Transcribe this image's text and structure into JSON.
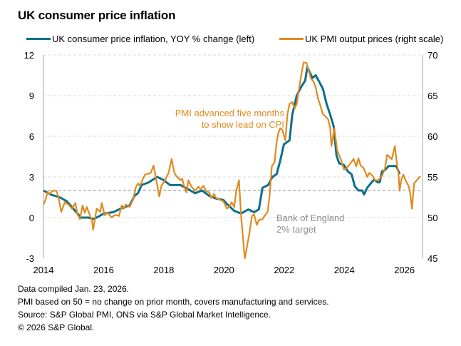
{
  "title": "UK consumer price inflation",
  "notes": [
    "Data compiled Jan. 23, 2026.",
    "PMI based on 50 = no change on prior month, covers manufacturing and services.",
    "Source: S&P Global PMI, ONS via S&P Global Market Intelligence.",
    "© 2026 S&P Global."
  ],
  "chart_data": {
    "type": "line",
    "title": "UK consumer price inflation",
    "xlim": [
      2014,
      2026.6
    ],
    "x_ticks": [
      2014,
      2016,
      2018,
      2020,
      2022,
      2024,
      2026
    ],
    "y_left": {
      "lim": [
        -3,
        12
      ],
      "ticks": [
        -3,
        0,
        3,
        6,
        9,
        12
      ]
    },
    "y_right": {
      "lim": [
        45,
        70
      ],
      "ticks": [
        45,
        50,
        55,
        60,
        65,
        70
      ]
    },
    "grid": "horizontal dashed",
    "legend_position": "top",
    "reference_line": {
      "axis": "left",
      "value": 2,
      "label_lines": [
        "Bank of England",
        "2% target"
      ],
      "color": "#8c8c8c"
    },
    "annotation": {
      "lines": [
        "PMI advanced five months",
        "to show lead on CPI"
      ],
      "color": "#e08a1e"
    },
    "series": [
      {
        "name": "UK consumer price inflation, YOY % change (left)",
        "axis": "left",
        "color": "#0e6f8c",
        "points": [
          [
            2014.0,
            2.0
          ],
          [
            2014.24,
            1.7
          ],
          [
            2014.54,
            1.5
          ],
          [
            2014.78,
            1.2
          ],
          [
            2015.09,
            0.4
          ],
          [
            2015.25,
            0.0
          ],
          [
            2015.49,
            0.0
          ],
          [
            2015.68,
            -0.1
          ],
          [
            2016.01,
            0.3
          ],
          [
            2016.32,
            0.4
          ],
          [
            2016.6,
            0.7
          ],
          [
            2016.86,
            0.9
          ],
          [
            2017.03,
            1.6
          ],
          [
            2017.14,
            1.8
          ],
          [
            2017.26,
            2.4
          ],
          [
            2017.5,
            2.6
          ],
          [
            2017.78,
            3.0
          ],
          [
            2017.97,
            2.8
          ],
          [
            2018.21,
            2.4
          ],
          [
            2018.56,
            2.4
          ],
          [
            2018.8,
            2.1
          ],
          [
            2019.04,
            1.8
          ],
          [
            2019.27,
            2.0
          ],
          [
            2019.51,
            1.6
          ],
          [
            2019.74,
            1.4
          ],
          [
            2019.98,
            1.3
          ],
          [
            2020.1,
            1.0
          ],
          [
            2020.34,
            0.5
          ],
          [
            2020.57,
            0.3
          ],
          [
            2020.81,
            0.6
          ],
          [
            2021.0,
            0.4
          ],
          [
            2021.16,
            0.6
          ],
          [
            2021.28,
            2.2
          ],
          [
            2021.47,
            2.4
          ],
          [
            2021.61,
            3.0
          ],
          [
            2021.75,
            3.2
          ],
          [
            2021.87,
            4.2
          ],
          [
            2021.99,
            5.4
          ],
          [
            2022.18,
            5.7
          ],
          [
            2022.27,
            7.6
          ],
          [
            2022.42,
            9.0
          ],
          [
            2022.58,
            9.7
          ],
          [
            2022.7,
            10.1
          ],
          [
            2022.77,
            11.1
          ],
          [
            2022.94,
            10.3
          ],
          [
            2023.05,
            10.5
          ],
          [
            2023.17,
            10.0
          ],
          [
            2023.29,
            9.5
          ],
          [
            2023.41,
            8.4
          ],
          [
            2023.53,
            7.6
          ],
          [
            2023.65,
            6.7
          ],
          [
            2023.74,
            4.6
          ],
          [
            2023.83,
            4.0
          ],
          [
            2023.98,
            3.9
          ],
          [
            2024.12,
            3.4
          ],
          [
            2024.24,
            3.2
          ],
          [
            2024.35,
            2.3
          ],
          [
            2024.47,
            2.0
          ],
          [
            2024.59,
            2.0
          ],
          [
            2024.66,
            1.7
          ],
          [
            2024.76,
            2.2
          ],
          [
            2024.87,
            2.5
          ],
          [
            2024.99,
            2.8
          ],
          [
            2025.11,
            2.6
          ],
          [
            2025.18,
            2.6
          ],
          [
            2025.25,
            3.4
          ],
          [
            2025.35,
            3.5
          ],
          [
            2025.47,
            3.8
          ],
          [
            2025.61,
            3.8
          ],
          [
            2025.73,
            3.8
          ],
          [
            2025.84,
            3.2
          ]
        ]
      },
      {
        "name": "UK PMI output prices (right scale)",
        "axis": "right",
        "color": "#e08a1e",
        "points": [
          [
            2014.0,
            51.6
          ],
          [
            2014.07,
            52.2
          ],
          [
            2014.14,
            53.2
          ],
          [
            2014.19,
            52.9
          ],
          [
            2014.31,
            53.3
          ],
          [
            2014.43,
            53.3
          ],
          [
            2014.5,
            52.5
          ],
          [
            2014.59,
            50.7
          ],
          [
            2014.71,
            51.9
          ],
          [
            2014.83,
            51.6
          ],
          [
            2014.95,
            51.1
          ],
          [
            2015.06,
            51.8
          ],
          [
            2015.13,
            50.4
          ],
          [
            2015.21,
            49.8
          ],
          [
            2015.3,
            51.5
          ],
          [
            2015.37,
            50.6
          ],
          [
            2015.44,
            51.3
          ],
          [
            2015.54,
            50.3
          ],
          [
            2015.61,
            49.7
          ],
          [
            2015.65,
            48.5
          ],
          [
            2015.77,
            51.1
          ],
          [
            2015.89,
            50.7
          ],
          [
            2015.94,
            51.8
          ],
          [
            2016.03,
            50.3
          ],
          [
            2016.13,
            50.6
          ],
          [
            2016.2,
            50.3
          ],
          [
            2016.27,
            50.0
          ],
          [
            2016.36,
            50.3
          ],
          [
            2016.43,
            50.3
          ],
          [
            2016.51,
            50.2
          ],
          [
            2016.6,
            51.5
          ],
          [
            2016.67,
            51.1
          ],
          [
            2016.74,
            51.6
          ],
          [
            2016.86,
            51.3
          ],
          [
            2016.98,
            52.2
          ],
          [
            2017.07,
            53.7
          ],
          [
            2017.14,
            54.2
          ],
          [
            2017.21,
            53.9
          ],
          [
            2017.31,
            54.8
          ],
          [
            2017.38,
            55.3
          ],
          [
            2017.5,
            55.4
          ],
          [
            2017.57,
            55.5
          ],
          [
            2017.66,
            56.4
          ],
          [
            2017.76,
            54.4
          ],
          [
            2017.85,
            52.6
          ],
          [
            2017.92,
            53.9
          ],
          [
            2018.04,
            54.6
          ],
          [
            2018.16,
            55.5
          ],
          [
            2018.26,
            57.2
          ],
          [
            2018.35,
            55.5
          ],
          [
            2018.42,
            55.1
          ],
          [
            2018.56,
            54.6
          ],
          [
            2018.61,
            54.8
          ],
          [
            2018.68,
            53.8
          ],
          [
            2018.75,
            53.1
          ],
          [
            2018.82,
            54.6
          ],
          [
            2018.92,
            53.8
          ],
          [
            2019.04,
            53.3
          ],
          [
            2019.15,
            53.8
          ],
          [
            2019.22,
            53.5
          ],
          [
            2019.32,
            53.9
          ],
          [
            2019.39,
            53.3
          ],
          [
            2019.51,
            53.1
          ],
          [
            2019.58,
            52.4
          ],
          [
            2019.67,
            52.9
          ],
          [
            2019.74,
            52.4
          ],
          [
            2019.86,
            52.2
          ],
          [
            2019.98,
            52.0
          ],
          [
            2020.1,
            51.1
          ],
          [
            2020.17,
            51.3
          ],
          [
            2020.26,
            51.9
          ],
          [
            2020.34,
            51.3
          ],
          [
            2020.41,
            53.3
          ],
          [
            2020.5,
            54.6
          ],
          [
            2020.57,
            50.2
          ],
          [
            2020.69,
            45.0
          ],
          [
            2020.76,
            46.3
          ],
          [
            2020.86,
            48.4
          ],
          [
            2020.93,
            50.2
          ],
          [
            2021.0,
            50.4
          ],
          [
            2021.09,
            49.1
          ],
          [
            2021.16,
            49.7
          ],
          [
            2021.28,
            49.8
          ],
          [
            2021.35,
            50.2
          ],
          [
            2021.45,
            50.7
          ],
          [
            2021.52,
            52.8
          ],
          [
            2021.59,
            56.3
          ],
          [
            2021.68,
            56.8
          ],
          [
            2021.75,
            59.2
          ],
          [
            2021.8,
            60.3
          ],
          [
            2021.87,
            61.0
          ],
          [
            2021.94,
            60.8
          ],
          [
            2022.04,
            59.5
          ],
          [
            2022.11,
            62.7
          ],
          [
            2022.18,
            64.0
          ],
          [
            2022.27,
            64.2
          ],
          [
            2022.35,
            63.4
          ],
          [
            2022.42,
            64.0
          ],
          [
            2022.51,
            66.2
          ],
          [
            2022.58,
            67.8
          ],
          [
            2022.65,
            69.1
          ],
          [
            2022.75,
            69.0
          ],
          [
            2022.82,
            68.0
          ],
          [
            2022.89,
            67.1
          ],
          [
            2022.98,
            66.7
          ],
          [
            2023.05,
            66.0
          ],
          [
            2023.12,
            64.7
          ],
          [
            2023.22,
            63.6
          ],
          [
            2023.29,
            62.7
          ],
          [
            2023.36,
            62.5
          ],
          [
            2023.46,
            62.1
          ],
          [
            2023.53,
            61.0
          ],
          [
            2023.57,
            58.8
          ],
          [
            2023.67,
            61.0
          ],
          [
            2023.76,
            58.3
          ],
          [
            2023.88,
            57.2
          ],
          [
            2023.99,
            55.9
          ],
          [
            2024.07,
            56.1
          ],
          [
            2024.19,
            56.6
          ],
          [
            2024.31,
            57.2
          ],
          [
            2024.4,
            56.3
          ],
          [
            2024.47,
            57.3
          ],
          [
            2024.54,
            56.4
          ],
          [
            2024.64,
            56.1
          ],
          [
            2024.71,
            55.5
          ],
          [
            2024.76,
            55.0
          ],
          [
            2024.83,
            55.5
          ],
          [
            2024.95,
            55.1
          ],
          [
            2025.02,
            54.6
          ],
          [
            2025.13,
            54.6
          ],
          [
            2025.25,
            55.1
          ],
          [
            2025.35,
            56.0
          ],
          [
            2025.42,
            57.7
          ],
          [
            2025.49,
            57.5
          ],
          [
            2025.58,
            57.2
          ],
          [
            2025.68,
            58.8
          ],
          [
            2025.73,
            57.2
          ],
          [
            2025.8,
            55.4
          ],
          [
            2025.84,
            53.3
          ],
          [
            2025.89,
            54.6
          ],
          [
            2025.96,
            55.3
          ],
          [
            2026.06,
            54.4
          ],
          [
            2026.13,
            53.9
          ],
          [
            2026.18,
            53.3
          ],
          [
            2026.25,
            51.1
          ],
          [
            2026.32,
            54.2
          ],
          [
            2026.41,
            54.6
          ],
          [
            2026.53,
            55.1
          ]
        ]
      }
    ]
  }
}
